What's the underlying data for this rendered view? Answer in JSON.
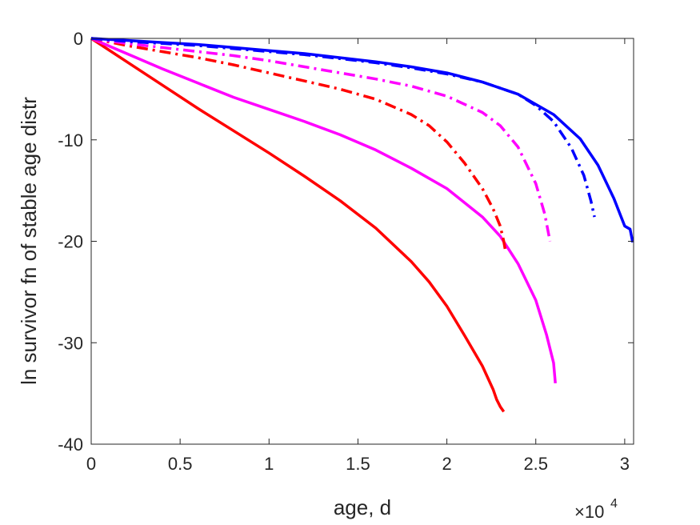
{
  "chart_data": {
    "type": "line",
    "title": "",
    "xlabel": "age, d",
    "ylabel": "ln survivor fn of stable age distr",
    "x_exponent_label": "×10",
    "x_exponent_power": "4",
    "xlim": [
      0,
      30500
    ],
    "ylim": [
      -40,
      0
    ],
    "xticks": [
      0,
      5000,
      10000,
      15000,
      20000,
      25000,
      30000
    ],
    "xtick_labels": [
      "0",
      "0.5",
      "1",
      "1.5",
      "2",
      "2.5",
      "3"
    ],
    "yticks": [
      0,
      -10,
      -20,
      -30,
      -40
    ],
    "ytick_labels": [
      "0",
      "-10",
      "-20",
      "-30",
      "-40"
    ],
    "grid": false,
    "legend": "none",
    "series": [
      {
        "color": "#ff0000",
        "style": "solid",
        "points": [
          [
            0,
            0
          ],
          [
            2000,
            -2.3
          ],
          [
            4000,
            -4.6
          ],
          [
            6000,
            -6.9
          ],
          [
            8000,
            -9.1
          ],
          [
            10000,
            -11.3
          ],
          [
            12000,
            -13.6
          ],
          [
            14000,
            -16.0
          ],
          [
            16000,
            -18.7
          ],
          [
            18000,
            -22.0
          ],
          [
            19000,
            -24.0
          ],
          [
            20000,
            -26.4
          ],
          [
            21000,
            -29.3
          ],
          [
            22000,
            -32.3
          ],
          [
            22600,
            -34.6
          ],
          [
            22800,
            -35.6
          ],
          [
            23000,
            -36.3
          ],
          [
            23200,
            -36.8
          ]
        ]
      },
      {
        "color": "#ff00ff",
        "style": "solid",
        "points": [
          [
            0,
            0
          ],
          [
            2000,
            -1.5
          ],
          [
            4000,
            -3.0
          ],
          [
            6000,
            -4.4
          ],
          [
            8000,
            -5.8
          ],
          [
            10000,
            -7.0
          ],
          [
            12000,
            -8.2
          ],
          [
            14000,
            -9.5
          ],
          [
            16000,
            -11.0
          ],
          [
            18000,
            -12.8
          ],
          [
            20000,
            -14.8
          ],
          [
            22000,
            -17.6
          ],
          [
            23000,
            -19.5
          ],
          [
            24000,
            -22.2
          ],
          [
            25000,
            -25.8
          ],
          [
            25600,
            -29.2
          ],
          [
            26000,
            -32.0
          ],
          [
            26100,
            -34.0
          ]
        ]
      },
      {
        "color": "#ff0000",
        "style": "dashdot",
        "points": [
          [
            0,
            0
          ],
          [
            2000,
            -0.7
          ],
          [
            4000,
            -1.3
          ],
          [
            6000,
            -1.9
          ],
          [
            8000,
            -2.6
          ],
          [
            10000,
            -3.4
          ],
          [
            12000,
            -4.2
          ],
          [
            14000,
            -5.0
          ],
          [
            16000,
            -6.0
          ],
          [
            18000,
            -7.5
          ],
          [
            19000,
            -8.6
          ],
          [
            20000,
            -10.2
          ],
          [
            21000,
            -12.3
          ],
          [
            22000,
            -14.8
          ],
          [
            22600,
            -16.8
          ],
          [
            23000,
            -18.5
          ],
          [
            23200,
            -20.0
          ],
          [
            23300,
            -21.0
          ]
        ]
      },
      {
        "color": "#ff00ff",
        "style": "dashdot",
        "points": [
          [
            0,
            0
          ],
          [
            2000,
            -0.5
          ],
          [
            4000,
            -0.9
          ],
          [
            6000,
            -1.3
          ],
          [
            8000,
            -1.7
          ],
          [
            10000,
            -2.2
          ],
          [
            12000,
            -2.8
          ],
          [
            14000,
            -3.4
          ],
          [
            16000,
            -4.0
          ],
          [
            18000,
            -4.7
          ],
          [
            20000,
            -5.7
          ],
          [
            22000,
            -7.3
          ],
          [
            23000,
            -8.6
          ],
          [
            24000,
            -10.7
          ],
          [
            25000,
            -14.3
          ],
          [
            25500,
            -17.3
          ],
          [
            25800,
            -20.0
          ]
        ]
      },
      {
        "color": "#0000ff",
        "style": "dashdot",
        "points": [
          [
            0,
            0
          ],
          [
            2000,
            -0.3
          ],
          [
            4000,
            -0.5
          ],
          [
            6000,
            -0.7
          ],
          [
            8000,
            -1.0
          ],
          [
            10000,
            -1.3
          ],
          [
            12000,
            -1.6
          ],
          [
            14000,
            -2.0
          ],
          [
            16000,
            -2.4
          ],
          [
            18000,
            -2.9
          ],
          [
            20000,
            -3.5
          ],
          [
            22000,
            -4.3
          ],
          [
            24000,
            -5.5
          ],
          [
            25000,
            -6.6
          ],
          [
            26000,
            -8.2
          ],
          [
            27000,
            -10.8
          ],
          [
            27700,
            -13.5
          ],
          [
            28100,
            -16.0
          ],
          [
            28300,
            -17.6
          ]
        ]
      },
      {
        "color": "#0000ff",
        "style": "solid",
        "points": [
          [
            0,
            0
          ],
          [
            2000,
            -0.2
          ],
          [
            4000,
            -0.4
          ],
          [
            6000,
            -0.6
          ],
          [
            8000,
            -0.9
          ],
          [
            10000,
            -1.2
          ],
          [
            12000,
            -1.5
          ],
          [
            14000,
            -1.9
          ],
          [
            16000,
            -2.3
          ],
          [
            18000,
            -2.8
          ],
          [
            20000,
            -3.4
          ],
          [
            22000,
            -4.3
          ],
          [
            24000,
            -5.5
          ],
          [
            26000,
            -7.5
          ],
          [
            27500,
            -9.9
          ],
          [
            28500,
            -12.5
          ],
          [
            29400,
            -15.8
          ],
          [
            30000,
            -18.5
          ],
          [
            30300,
            -18.8
          ],
          [
            30450,
            -20.1
          ]
        ]
      }
    ]
  }
}
